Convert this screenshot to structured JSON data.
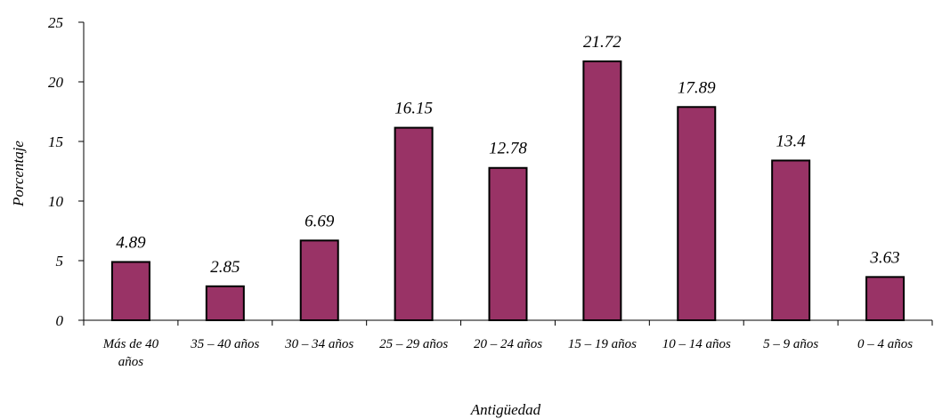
{
  "chart_data": {
    "type": "bar",
    "categories": [
      [
        "Más de 40",
        "años"
      ],
      [
        "35 – 40 años"
      ],
      [
        "30 – 34 años"
      ],
      [
        "25 – 29 años"
      ],
      [
        "20 – 24 años"
      ],
      [
        "15 – 19 años"
      ],
      [
        "10 – 14 años"
      ],
      [
        "5 – 9 años"
      ],
      [
        "0 – 4 años"
      ]
    ],
    "values": [
      4.89,
      2.85,
      6.69,
      16.15,
      12.78,
      21.72,
      17.89,
      13.4,
      3.63
    ],
    "data_labels": [
      "4.89",
      "2.85",
      "6.69",
      "16.15",
      "12.78",
      "21.72",
      "17.89",
      "13.4",
      "3.63"
    ],
    "ylabel": "Porcentaje",
    "xlabel": "Antigüedad",
    "ylim": [
      0,
      25
    ],
    "yticks": [
      "0",
      "5",
      "10",
      "15",
      "20",
      "25"
    ],
    "grid": false,
    "legend": "none",
    "bar_color": "#993366"
  }
}
